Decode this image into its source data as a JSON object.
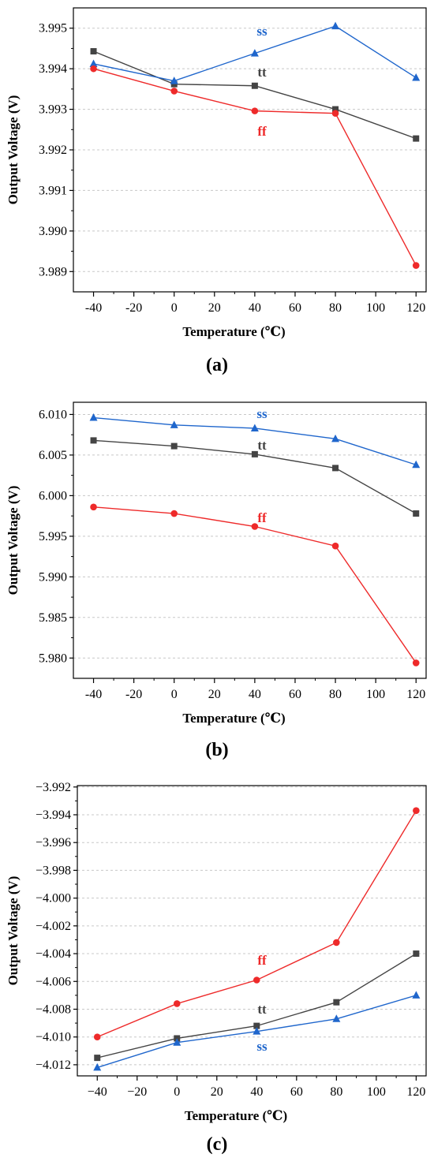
{
  "chart_data": [
    {
      "type": "line",
      "panel_label": "(a)",
      "xlabel": "Temperature (℃)",
      "ylabel": "Output Voltage (V)",
      "x": [
        -40,
        0,
        40,
        80,
        120
      ],
      "xlim": [
        -50,
        125
      ],
      "ylim": [
        3.9885,
        3.9955
      ],
      "xticks": [
        "-40",
        "-20",
        "0",
        "20",
        "40",
        "60",
        "80",
        "100",
        "120"
      ],
      "yticks": [
        "3.989",
        "3.990",
        "3.991",
        "3.992",
        "3.993",
        "3.994",
        "3.995"
      ],
      "grid": true,
      "series": [
        {
          "name": "tt",
          "color": "#444444",
          "marker": "square",
          "values": [
            3.99443,
            3.99362,
            3.99358,
            3.993,
            3.99228
          ]
        },
        {
          "name": "ss",
          "color": "#1f66cc",
          "marker": "triangle",
          "values": [
            3.99412,
            3.9937,
            3.99438,
            3.99505,
            3.99378
          ]
        },
        {
          "name": "ff",
          "color": "#ee2a2a",
          "marker": "circle",
          "values": [
            3.994,
            3.99345,
            3.99296,
            3.9929,
            3.98915
          ]
        }
      ]
    },
    {
      "type": "line",
      "panel_label": "(b)",
      "xlabel": "Temperature (℃)",
      "ylabel": "Output Voltage (V)",
      "x": [
        -40,
        0,
        40,
        80,
        120
      ],
      "xlim": [
        -50,
        125
      ],
      "ylim": [
        5.9775,
        6.0115
      ],
      "xticks": [
        "-40",
        "-20",
        "0",
        "20",
        "40",
        "60",
        "80",
        "100",
        "120"
      ],
      "yticks": [
        "5.980",
        "5.985",
        "5.990",
        "5.995",
        "6.000",
        "6.005",
        "6.010"
      ],
      "grid": true,
      "series": [
        {
          "name": "tt",
          "color": "#444444",
          "marker": "square",
          "values": [
            6.0068,
            6.0061,
            6.0051,
            6.0034,
            5.9978
          ]
        },
        {
          "name": "ss",
          "color": "#1f66cc",
          "marker": "triangle",
          "values": [
            6.0096,
            6.0087,
            6.0083,
            6.007,
            6.0038
          ]
        },
        {
          "name": "ff",
          "color": "#ee2a2a",
          "marker": "circle",
          "values": [
            5.9986,
            5.9978,
            5.9962,
            5.9938,
            5.9794
          ]
        }
      ]
    },
    {
      "type": "line",
      "panel_label": "(c)",
      "xlabel": "Temperature (℃)",
      "ylabel": "Output Voltage (V)",
      "x": [
        -40,
        0,
        40,
        80,
        120
      ],
      "xlim": [
        -50,
        125
      ],
      "ylim": [
        -4.0128,
        -3.9919
      ],
      "xticks": [
        "−40",
        "−20",
        "0",
        "20",
        "40",
        "60",
        "80",
        "100",
        "120"
      ],
      "yticks": [
        "−4.012",
        "−4.010",
        "−4.008",
        "−4.006",
        "−4.004",
        "−4.002",
        "−4.000",
        "−3.998",
        "−3.996",
        "−3.994",
        "−3.992"
      ],
      "grid": true,
      "series": [
        {
          "name": "tt",
          "color": "#444444",
          "marker": "square",
          "values": [
            -4.0115,
            -4.0101,
            -4.0092,
            -4.0075,
            -4.004
          ]
        },
        {
          "name": "ss",
          "color": "#1f66cc",
          "marker": "triangle",
          "values": [
            -4.0122,
            -4.0104,
            -4.0096,
            -4.0087,
            -4.007
          ]
        },
        {
          "name": "ff",
          "color": "#ee2a2a",
          "marker": "circle",
          "values": [
            -4.01,
            -4.0076,
            -4.0059,
            -4.0032,
            -3.9937
          ]
        }
      ]
    }
  ]
}
